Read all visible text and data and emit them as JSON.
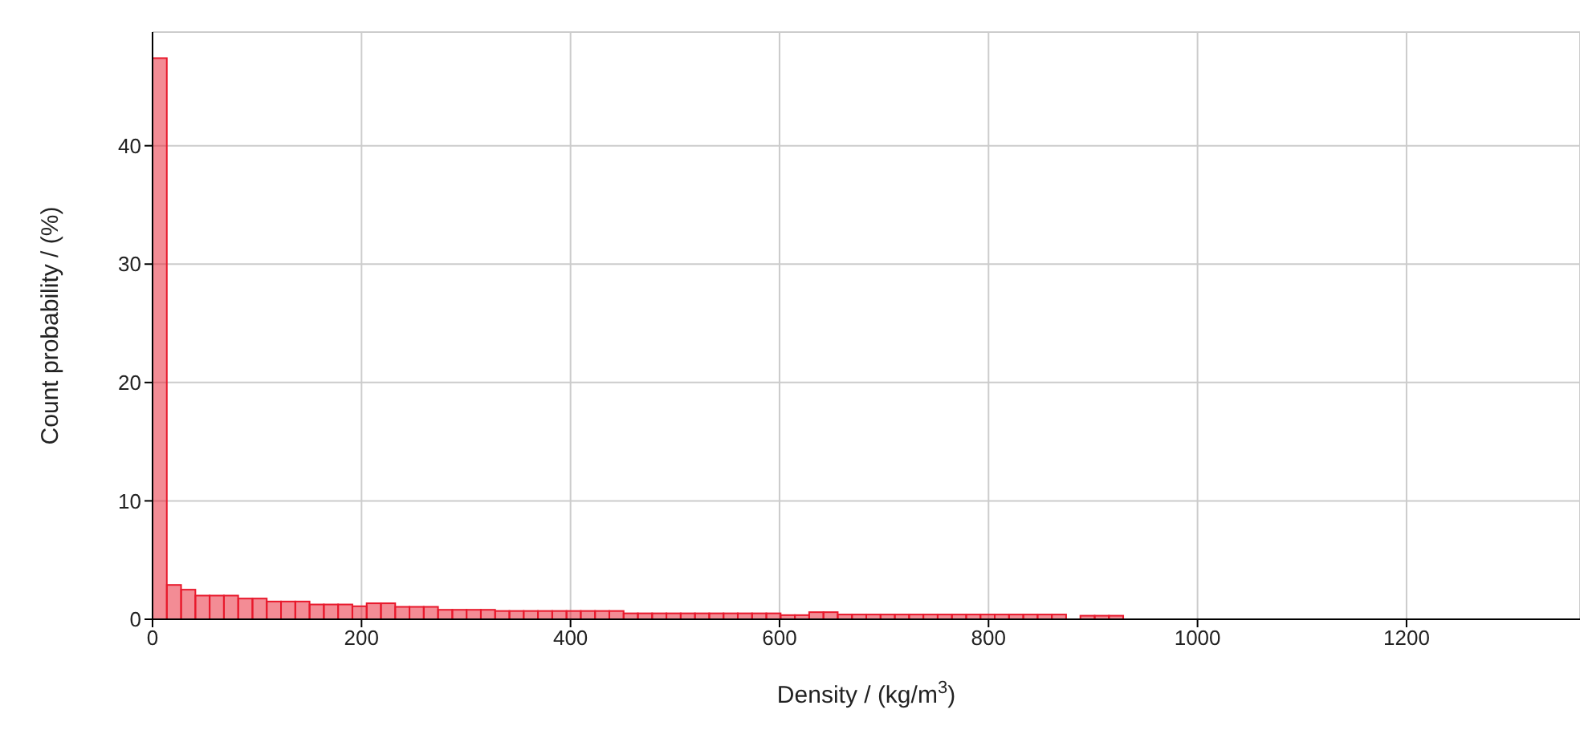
{
  "chart_data": {
    "type": "histogram",
    "xlabel": "Density / (kg/m$^{3}$)",
    "ylabel": "Count probability / (%)",
    "bins": [
      0,
      13.66,
      27.32,
      40.98,
      54.64,
      68.3,
      81.96,
      95.62,
      109.28,
      122.94,
      136.6,
      150.26,
      163.92,
      177.58,
      191.24,
      204.9,
      218.56,
      232.22,
      245.88,
      259.54,
      273.2,
      286.86,
      300.52,
      314.18,
      327.84,
      341.5,
      355.16,
      368.82,
      382.48,
      396.14,
      409.8,
      423.46,
      437.12,
      450.78,
      464.44,
      478.1,
      491.76,
      505.42,
      519.08,
      532.74,
      546.4,
      560.06,
      573.72,
      587.38,
      601.04,
      614.7,
      628.36,
      642.02,
      655.68,
      669.34,
      683,
      696.66,
      710.32,
      723.98,
      737.64,
      751.3,
      764.96,
      778.62,
      792.28,
      805.94,
      819.6,
      833.26,
      846.92,
      860.58,
      874.24,
      887.9,
      901.56,
      915.22,
      928.88,
      942.54,
      956.2,
      969.86,
      983.52,
      997.18,
      1010.84,
      1024.5,
      1038.16,
      1051.82,
      1065.48,
      1079.14,
      1092.8,
      1106.46,
      1120.12,
      1133.78,
      1147.44,
      1161.1,
      1174.76,
      1188.42,
      1202.08,
      1215.74,
      1229.4,
      1243.06,
      1256.72,
      1270.38,
      1284.04,
      1297.7,
      1311.36,
      1325.02,
      1338.68,
      1352.34,
      1366
    ],
    "values": [
      47.4,
      2.9,
      2.5,
      2.0,
      2.0,
      2.0,
      1.75,
      1.75,
      1.5,
      1.5,
      1.5,
      1.25,
      1.25,
      1.25,
      1.1,
      1.35,
      1.35,
      1.05,
      1.05,
      1.05,
      0.8,
      0.8,
      0.8,
      0.8,
      0.7,
      0.7,
      0.7,
      0.7,
      0.7,
      0.7,
      0.7,
      0.7,
      0.7,
      0.5,
      0.5,
      0.5,
      0.5,
      0.5,
      0.5,
      0.5,
      0.5,
      0.5,
      0.5,
      0.5,
      0.35,
      0.35,
      0.6,
      0.6,
      0.4,
      0.4,
      0.4,
      0.4,
      0.4,
      0.4,
      0.4,
      0.4,
      0.4,
      0.4,
      0.4,
      0.4,
      0.4,
      0.4,
      0.4,
      0.4,
      0,
      0.3,
      0.3,
      0.3,
      0,
      0,
      0,
      0,
      0,
      0,
      0,
      0,
      0,
      0,
      0,
      0,
      0,
      0,
      0,
      0,
      0,
      0,
      0,
      0,
      0,
      0,
      0,
      0,
      0,
      0,
      0,
      0,
      0,
      0,
      0,
      0
    ],
    "color": "#e8192c",
    "xlim": [
      0,
      1366
    ],
    "xticks": [
      0,
      200,
      400,
      600,
      800,
      1000,
      1200
    ],
    "ylim": [
      0,
      49.6
    ],
    "yticks": [
      0,
      10,
      20,
      30,
      40
    ],
    "grid": true
  }
}
